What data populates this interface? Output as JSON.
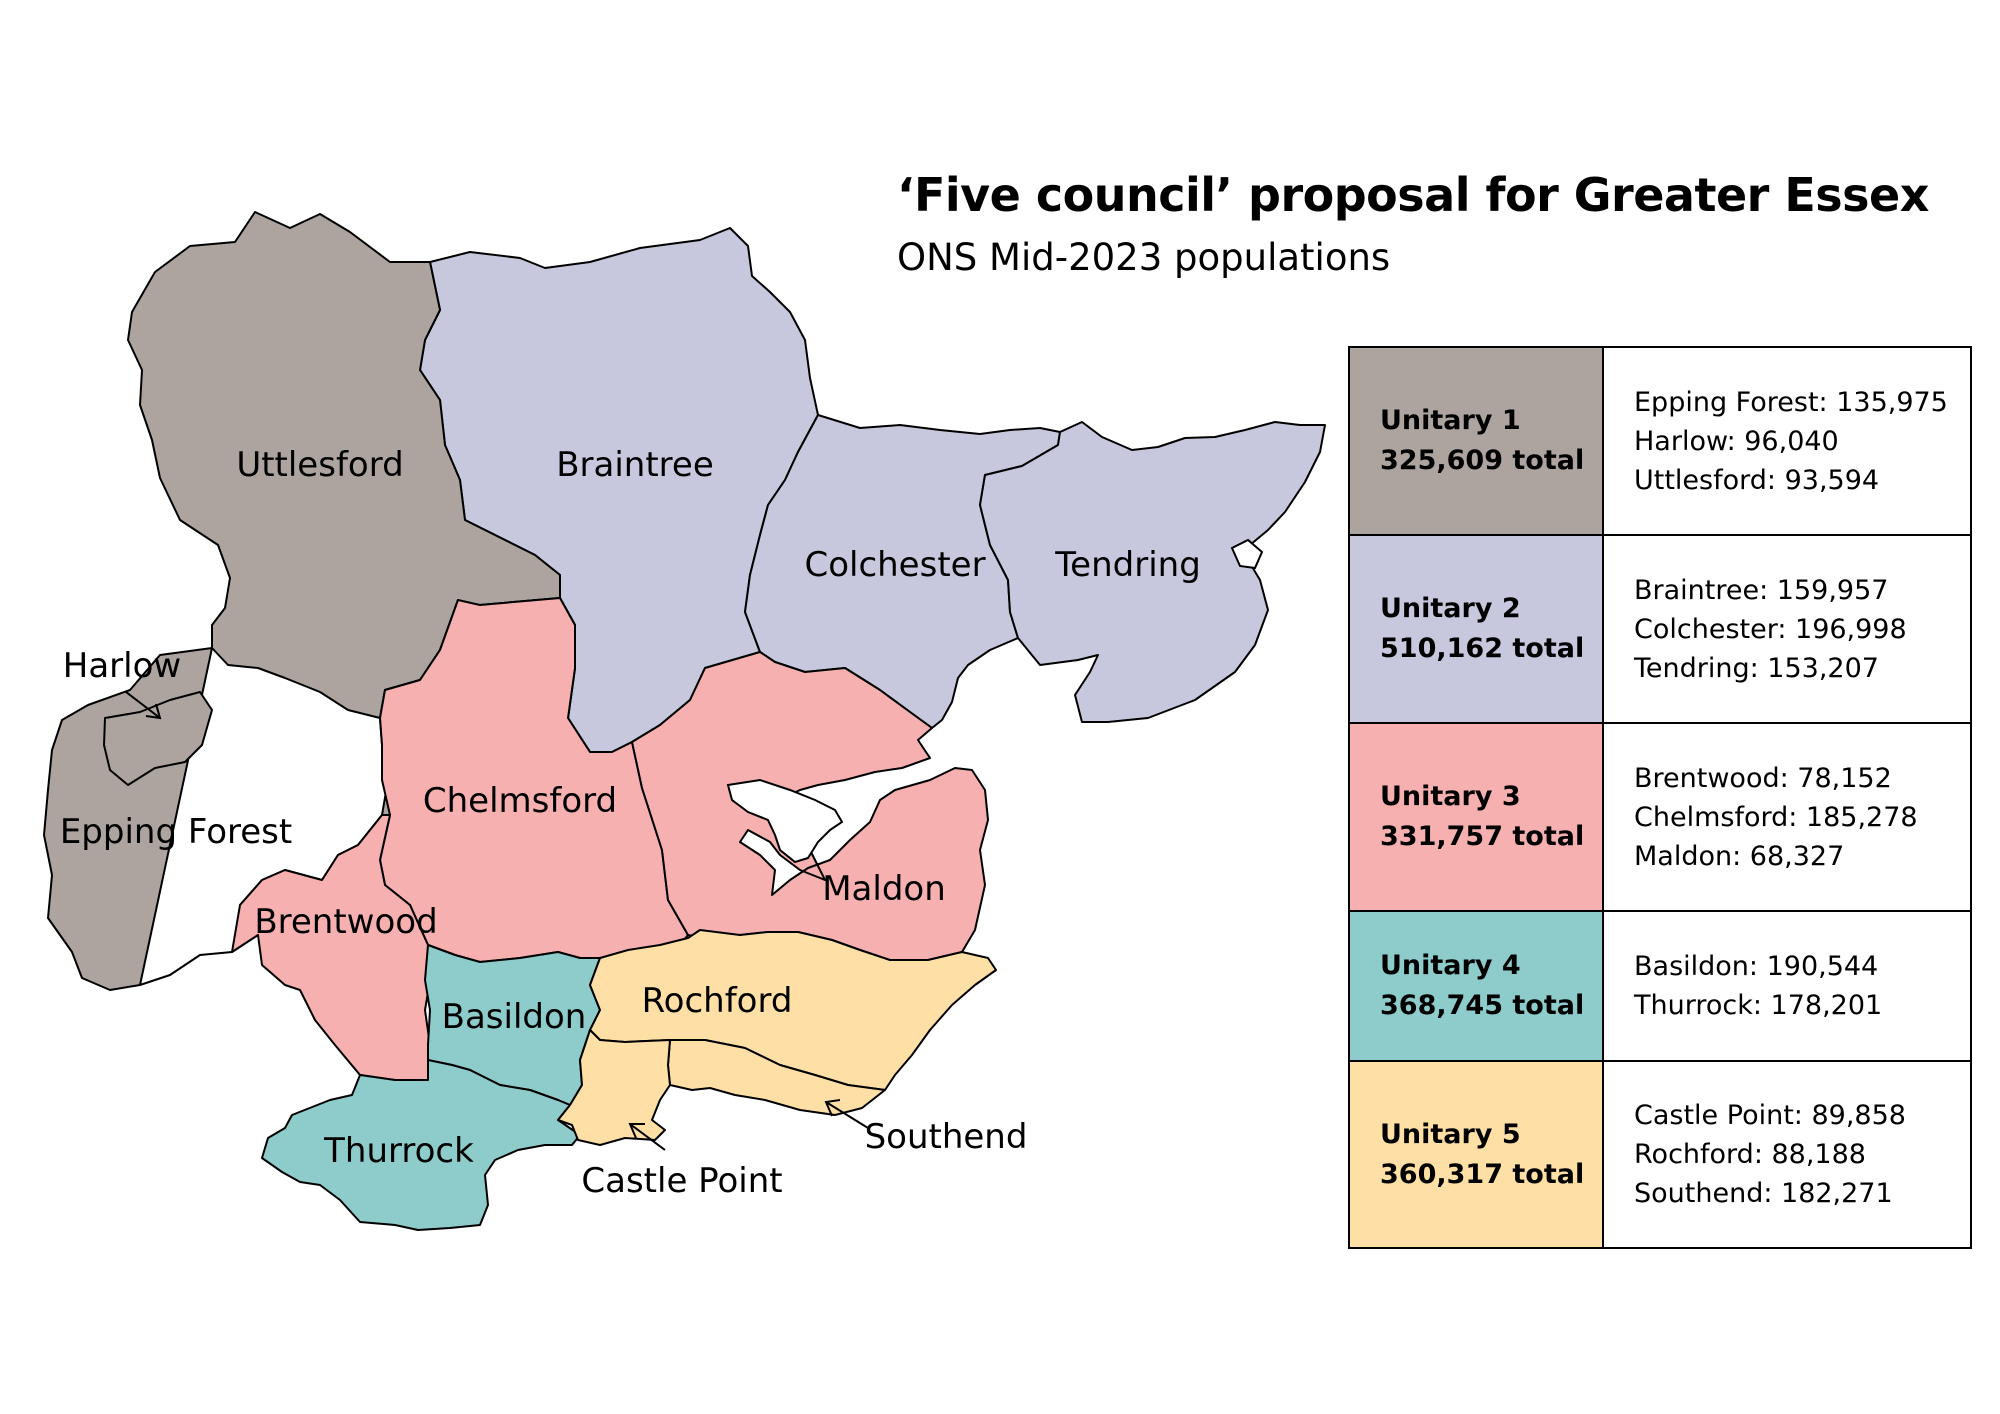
{
  "header": {
    "title": "‘Five council’ proposal for Greater Essex",
    "subtitle": "ONS Mid-2023 populations"
  },
  "colors": {
    "unitary_1": "#ada49f",
    "unitary_2": "#c7c7de",
    "unitary_3": "#f5b0af",
    "unitary_4": "#8ecbcb",
    "unitary_5": "#fee0a6"
  },
  "districts": {
    "uttlesford": "Uttlesford",
    "braintree": "Braintree",
    "colchester": "Colchester",
    "tendring": "Tendring",
    "harlow": "Harlow",
    "epping_forest": "Epping Forest",
    "chelmsford": "Chelmsford",
    "maldon": "Maldon",
    "brentwood": "Brentwood",
    "basildon": "Basildon",
    "rochford": "Rochford",
    "thurrock": "Thurrock",
    "castle_point": "Castle Point",
    "southend": "Southend"
  },
  "legend": {
    "unitaries": [
      {
        "name": "Unitary 1",
        "total": "325,609 total",
        "items": [
          "Epping Forest: 135,975",
          "Harlow: 96,040",
          "Uttlesford: 93,594"
        ]
      },
      {
        "name": "Unitary 2",
        "total": "510,162 total",
        "items": [
          "Braintree: 159,957",
          "Colchester: 196,998",
          "Tendring: 153,207"
        ]
      },
      {
        "name": "Unitary 3",
        "total": "331,757 total",
        "items": [
          "Brentwood: 78,152",
          "Chelmsford: 185,278",
          "Maldon: 68,327"
        ]
      },
      {
        "name": "Unitary 4",
        "total": "368,745 total",
        "items": [
          "Basildon: 190,544",
          "Thurrock: 178,201"
        ]
      },
      {
        "name": "Unitary 5",
        "total": "360,317 total",
        "items": [
          "Castle Point: 89,858",
          "Rochford: 88,188",
          "Southend: 182,271"
        ]
      }
    ]
  }
}
